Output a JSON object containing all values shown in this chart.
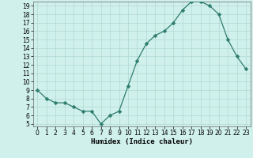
{
  "x": [
    0,
    1,
    2,
    3,
    4,
    5,
    6,
    7,
    8,
    9,
    10,
    11,
    12,
    13,
    14,
    15,
    16,
    17,
    18,
    19,
    20,
    21,
    22,
    23
  ],
  "y": [
    9.0,
    8.0,
    7.5,
    7.5,
    7.0,
    6.5,
    6.5,
    5.0,
    6.0,
    6.5,
    9.5,
    12.5,
    14.5,
    15.5,
    16.0,
    17.0,
    18.5,
    19.5,
    19.5,
    19.0,
    18.0,
    15.0,
    13.0,
    11.5
  ],
  "line_color": "#2e7d6e",
  "marker": "D",
  "marker_size": 2.5,
  "bg_color": "#d0f0ec",
  "grid_color": "#b0d8d2",
  "xlabel": "Humidex (Indice chaleur)",
  "ylim_min": 4.7,
  "ylim_max": 19.5,
  "xlim_min": -0.5,
  "xlim_max": 23.5,
  "yticks": [
    5,
    6,
    7,
    8,
    9,
    10,
    11,
    12,
    13,
    14,
    15,
    16,
    17,
    18,
    19
  ],
  "xticks": [
    0,
    1,
    2,
    3,
    4,
    5,
    6,
    7,
    8,
    9,
    10,
    11,
    12,
    13,
    14,
    15,
    16,
    17,
    18,
    19,
    20,
    21,
    22,
    23
  ],
  "tick_fontsize": 5.5,
  "label_fontsize": 6.5,
  "spine_color": "#666666",
  "figsize": [
    3.2,
    2.0
  ],
  "dpi": 100
}
